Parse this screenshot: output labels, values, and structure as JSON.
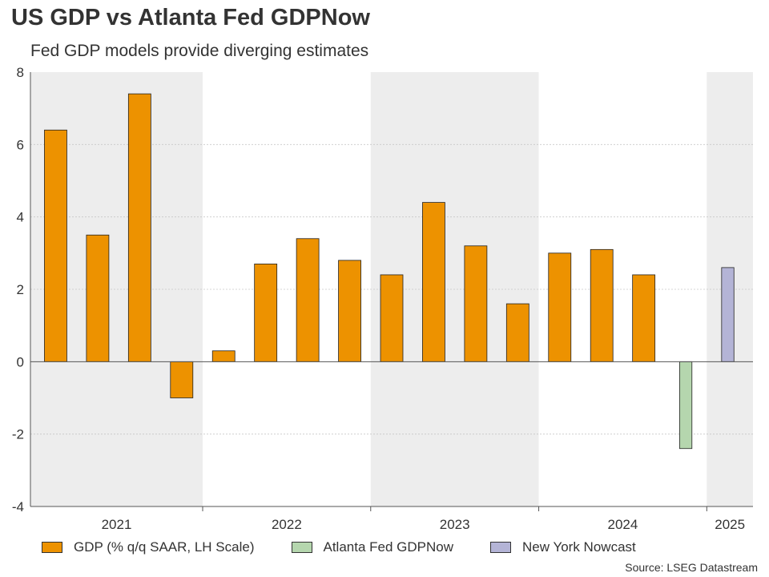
{
  "title": "US GDP vs Atlanta Fed GDPNow",
  "subtitle": "Fed GDP models provide diverging estimates",
  "source": "Source: LSEG Datastream",
  "chart_data": {
    "type": "bar",
    "ylim": [
      -4,
      8
    ],
    "yticks": [
      "-4",
      "-2",
      "0",
      "2",
      "4",
      "6",
      "8"
    ],
    "ytick_values": [
      -4,
      -2,
      0,
      2,
      4,
      6,
      8
    ],
    "grid": true,
    "shaded_years": [
      "2021",
      "2023",
      "2025"
    ],
    "years": [
      "2021",
      "2022",
      "2023",
      "2024",
      "2025"
    ],
    "quarters": [
      "2021Q1",
      "2021Q2",
      "2021Q3",
      "2021Q4",
      "2022Q1",
      "2022Q2",
      "2022Q3",
      "2022Q4",
      "2023Q1",
      "2023Q2",
      "2023Q3",
      "2023Q4",
      "2024Q1",
      "2024Q2",
      "2024Q3",
      "2024Q4",
      "2025Q1"
    ],
    "series": [
      {
        "name": "GDP (% q/q SAAR, LH Scale)",
        "color": "#ED9200",
        "values": [
          6.4,
          3.5,
          7.4,
          -1.0,
          0.3,
          2.7,
          3.4,
          2.8,
          2.4,
          4.4,
          3.2,
          1.6,
          3.0,
          3.1,
          2.4,
          null,
          null
        ]
      },
      {
        "name": "Atlanta Fed GDPNow",
        "color": "#B5D6AE",
        "values": [
          null,
          null,
          null,
          null,
          null,
          null,
          null,
          null,
          null,
          null,
          null,
          null,
          null,
          null,
          null,
          -2.4,
          null
        ]
      },
      {
        "name": "New York Nowcast",
        "color": "#B4B4D6",
        "values": [
          null,
          null,
          null,
          null,
          null,
          null,
          null,
          null,
          null,
          null,
          null,
          null,
          null,
          null,
          null,
          null,
          2.6
        ]
      }
    ],
    "legend_position": "bottom"
  }
}
